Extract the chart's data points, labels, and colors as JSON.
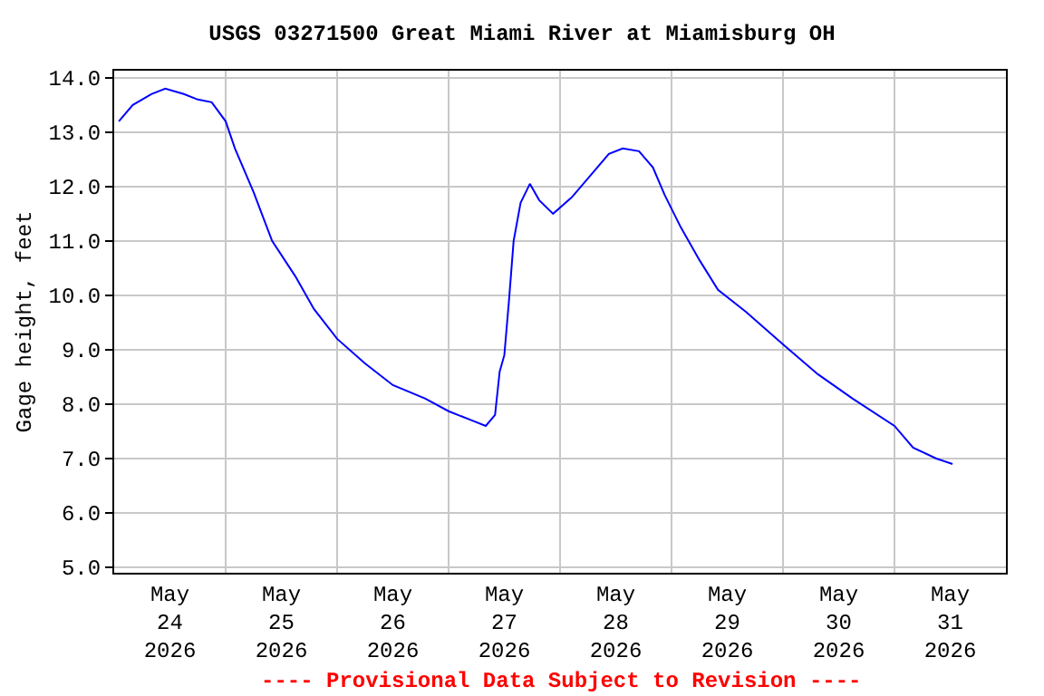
{
  "chart_data": {
    "type": "line",
    "title": "USGS 03271500 Great Miami River at Miamisburg OH",
    "ylabel": "Gage height, feet",
    "annotations": [
      "---- Provisional Data Subject to Revision ----"
    ],
    "x": [
      "2026-05-24T01:00",
      "2026-05-24T04:00",
      "2026-05-24T08:00",
      "2026-05-24T11:00",
      "2026-05-24T15:00",
      "2026-05-24T18:00",
      "2026-05-24T21:00",
      "2026-05-25T00:00",
      "2026-05-25T02:00",
      "2026-05-25T06:00",
      "2026-05-25T10:00",
      "2026-05-25T15:00",
      "2026-05-25T19:00",
      "2026-05-26T00:00",
      "2026-05-26T06:00",
      "2026-05-26T12:00",
      "2026-05-26T19:00",
      "2026-05-27T00:00",
      "2026-05-27T05:00",
      "2026-05-27T08:00",
      "2026-05-27T10:00",
      "2026-05-27T11:00",
      "2026-05-27T12:00",
      "2026-05-27T13:00",
      "2026-05-27T14:00",
      "2026-05-27T15:30",
      "2026-05-27T17:30",
      "2026-05-27T19:30",
      "2026-05-27T22:30",
      "2026-05-28T02:30",
      "2026-05-28T06:30",
      "2026-05-28T10:30",
      "2026-05-28T13:30",
      "2026-05-28T17:00",
      "2026-05-28T20:00",
      "2026-05-28T22:30",
      "2026-05-29T02:00",
      "2026-05-29T06:00",
      "2026-05-29T10:00",
      "2026-05-29T16:00",
      "2026-05-30T00:00",
      "2026-05-30T07:30",
      "2026-05-30T15:00",
      "2026-05-31T00:00",
      "2026-05-31T04:00",
      "2026-05-31T09:00",
      "2026-05-31T12:30"
    ],
    "series": [
      {
        "color": "#0000ff",
        "values": [
          13.2,
          13.5,
          13.7,
          13.8,
          13.7,
          13.6,
          13.55,
          13.2,
          12.7,
          11.9,
          11.0,
          10.35,
          9.75,
          9.2,
          8.75,
          8.35,
          8.1,
          7.87,
          7.7,
          7.6,
          7.8,
          8.6,
          8.9,
          9.9,
          11.0,
          11.7,
          12.05,
          11.75,
          11.5,
          11.8,
          12.2,
          12.6,
          12.7,
          12.65,
          12.35,
          11.85,
          11.25,
          10.65,
          10.1,
          9.7,
          9.1,
          8.55,
          8.1,
          7.6,
          7.2,
          7.0,
          6.9
        ]
      }
    ],
    "xlim": [
      "2026-05-24T00:00",
      "2026-06-01T00:00"
    ],
    "xticks": [
      {
        "value": "2026-05-24T12:00",
        "label": "May\n24\n2026"
      },
      {
        "value": "2026-05-25T00:00",
        "label": null
      },
      {
        "value": "2026-05-25T12:00",
        "label": "May\n25\n2026"
      },
      {
        "value": "2026-05-26T00:00",
        "label": null
      },
      {
        "value": "2026-05-26T12:00",
        "label": "May\n26\n2026"
      },
      {
        "value": "2026-05-27T00:00",
        "label": null
      },
      {
        "value": "2026-05-27T12:00",
        "label": "May\n27\n2026"
      },
      {
        "value": "2026-05-28T00:00",
        "label": null
      },
      {
        "value": "2026-05-28T12:00",
        "label": "May\n28\n2026"
      },
      {
        "value": "2026-05-29T00:00",
        "label": null
      },
      {
        "value": "2026-05-29T12:00",
        "label": "May\n29\n2026"
      },
      {
        "value": "2026-05-30T00:00",
        "label": null
      },
      {
        "value": "2026-05-30T12:00",
        "label": "May\n30\n2026"
      },
      {
        "value": "2026-05-31T00:00",
        "label": null
      },
      {
        "value": "2026-05-31T12:00",
        "label": "May\n31\n2026"
      }
    ],
    "ylim": [
      4.9,
      14.13
    ],
    "yticks": [
      {
        "value": 5,
        "label": "5.0"
      },
      {
        "value": 6,
        "label": "6.0"
      },
      {
        "value": 7,
        "label": "7.0"
      },
      {
        "value": 8,
        "label": "8.0"
      },
      {
        "value": 9,
        "label": "9.0"
      },
      {
        "value": 10,
        "label": "10.0"
      },
      {
        "value": 11,
        "label": "11.0"
      },
      {
        "value": 12,
        "label": "12.0"
      },
      {
        "value": 13,
        "label": "13.0"
      },
      {
        "value": 14,
        "label": "14.0"
      }
    ],
    "grid": true,
    "marker": "none",
    "line_style": "solid"
  }
}
